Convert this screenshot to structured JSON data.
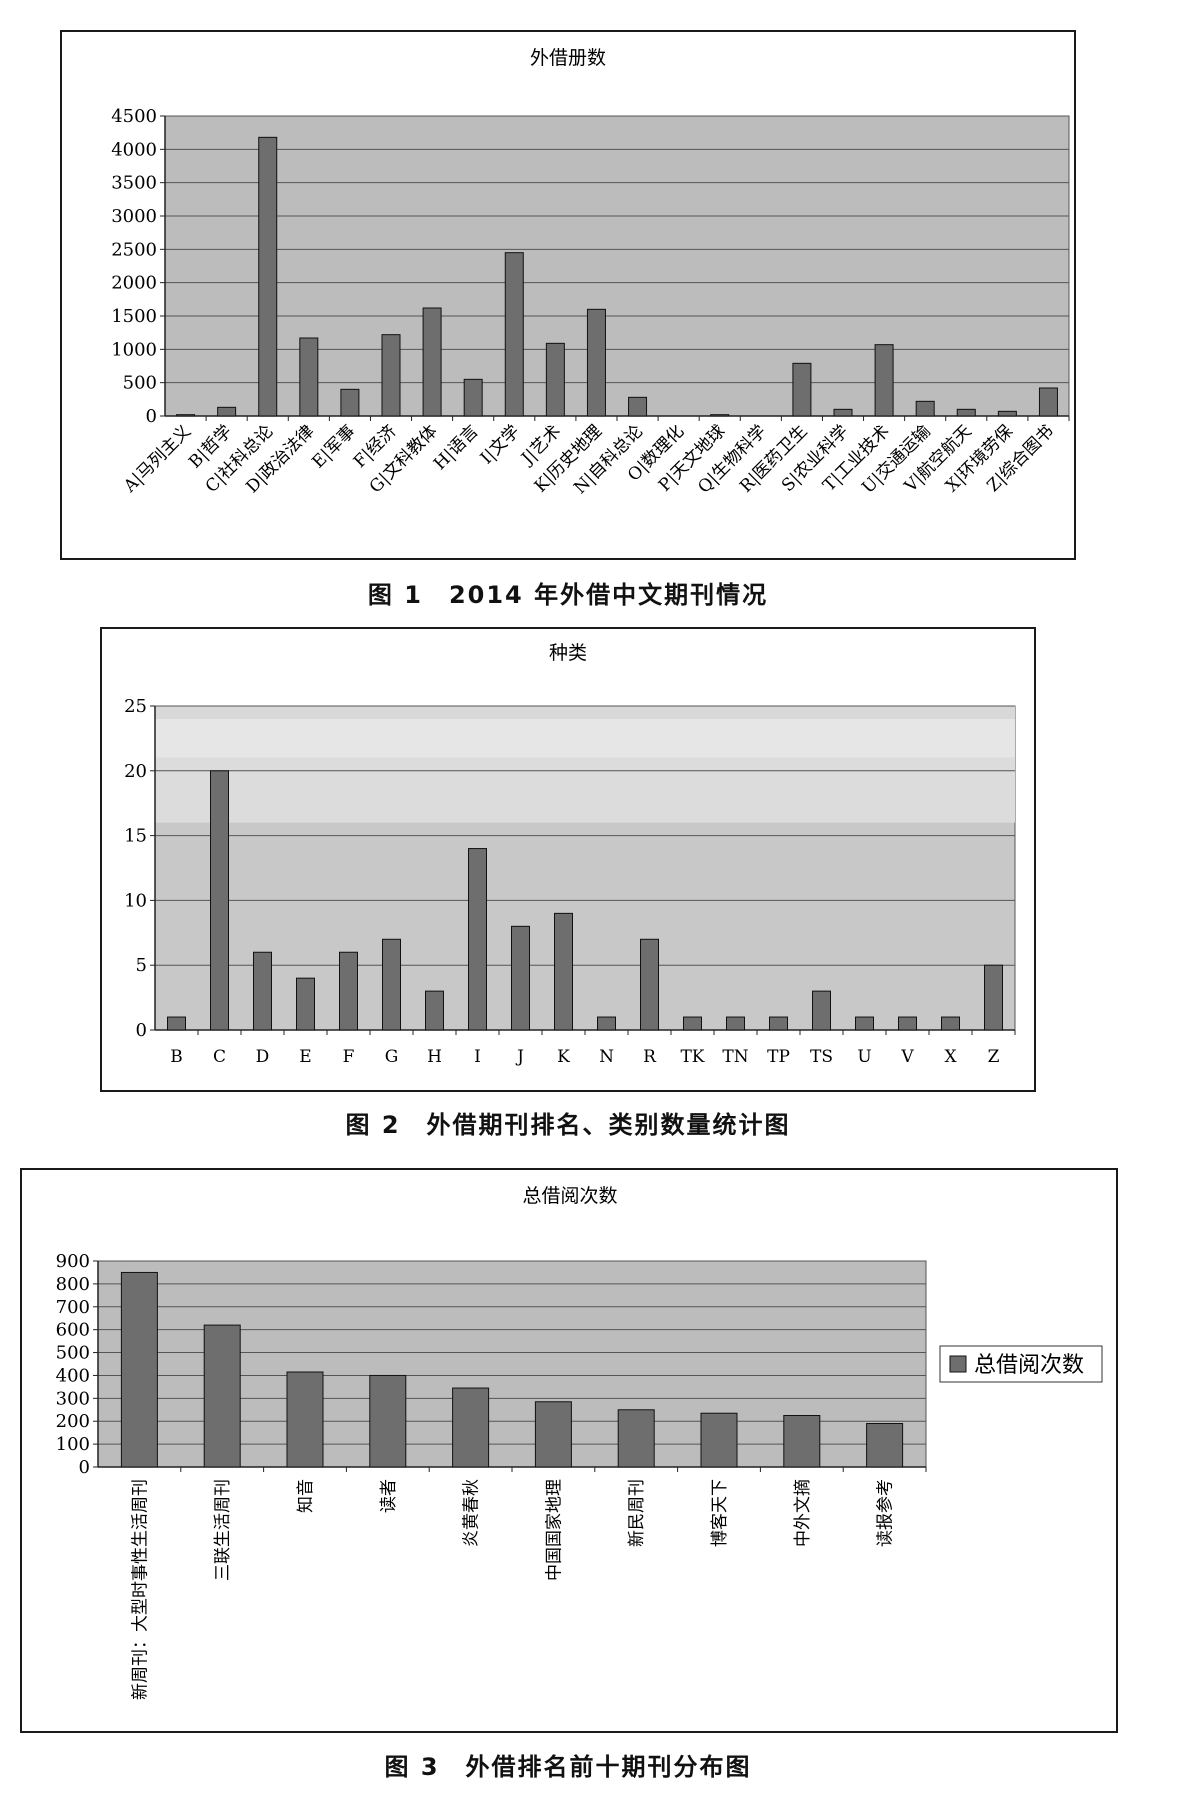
{
  "chart_data": [
    {
      "type": "bar",
      "title": "外借册数",
      "caption": "图 1　2014 年外借中文期刊情况",
      "categories": [
        "A|马列主义",
        "B|哲学",
        "C|社科总论",
        "D|政治法律",
        "E|军事",
        "F|经济",
        "G|文科教体",
        "H|语言",
        "I|文学",
        "J|艺术",
        "K|历史地理",
        "N|自科总论",
        "O|数理化",
        "P|天文地球",
        "Q|生物科学",
        "R|医药卫生",
        "S|农业科学",
        "T|工业技术",
        "U|交通运输",
        "V|航空航天",
        "X|环境劳保",
        "Z|综合图书"
      ],
      "values": [
        20,
        130,
        4180,
        1170,
        400,
        1220,
        1620,
        550,
        2450,
        1090,
        1600,
        280,
        0,
        20,
        0,
        790,
        100,
        1070,
        220,
        100,
        70,
        420
      ],
      "ylim": [
        0,
        4500
      ],
      "yticks": [
        0,
        500,
        1000,
        1500,
        2000,
        2500,
        3000,
        3500,
        4000,
        4500
      ],
      "grid": true,
      "colors": {
        "bar": "#6e6e6e",
        "plot_bg": "#bcbcbc"
      }
    },
    {
      "type": "bar",
      "title": "种类",
      "caption": "图 2　外借期刊排名、类别数量统计图",
      "categories": [
        "B",
        "C",
        "D",
        "E",
        "F",
        "G",
        "H",
        "I",
        "J",
        "K",
        "N",
        "R",
        "TK",
        "TN",
        "TP",
        "TS",
        "U",
        "V",
        "X",
        "Z"
      ],
      "values": [
        1,
        20,
        6,
        4,
        6,
        7,
        3,
        14,
        8,
        9,
        1,
        7,
        1,
        1,
        1,
        3,
        1,
        1,
        1,
        5
      ],
      "ylim": [
        0,
        25
      ],
      "yticks": [
        0,
        5,
        10,
        15,
        20,
        25
      ],
      "grid": true,
      "colors": {
        "bar": "#6e6e6e",
        "plot_bg": "#c8c8c8"
      }
    },
    {
      "type": "bar",
      "title": "总借阅次数",
      "caption": "图 3　外借排名前十期刊分布图",
      "categories": [
        "新周刊：大型时事性生活周刊",
        "三联生活周刊",
        "知音",
        "读者",
        "炎黄春秋",
        "中国国家地理",
        "新民周刊",
        "博客天下",
        "中外文摘",
        "读报参考"
      ],
      "values": [
        850,
        620,
        415,
        400,
        345,
        285,
        250,
        235,
        225,
        190
      ],
      "ylim": [
        0,
        900
      ],
      "yticks": [
        0,
        100,
        200,
        300,
        400,
        500,
        600,
        700,
        800,
        900
      ],
      "legend": {
        "label": "总借阅次数",
        "placement": "right"
      },
      "grid": true,
      "colors": {
        "bar": "#6e6e6e",
        "plot_bg": "#bcbcbc"
      }
    }
  ]
}
